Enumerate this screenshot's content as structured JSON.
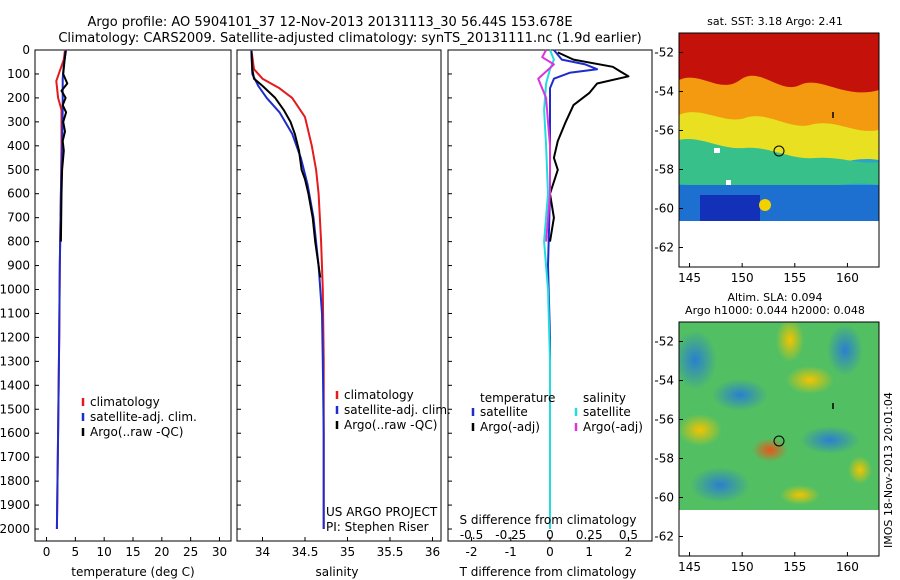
{
  "header": {
    "line1": "Argo profile: AO 5904101_37 12-Nov-2013 20131113_30 56.44S 153.678E",
    "line2": "Climatology: CARS2009. Satellite-adjusted climatology: synTS_20131111.nc (1.9d earlier)"
  },
  "side_label": "IMOS 18-Nov-2013 20:01:04",
  "colors": {
    "climatology": "#e41a1c",
    "satellite": "#1f2ccc",
    "argo": "#000000",
    "sat_salinity": "#22dddd",
    "argo_salinity": "#dd33dd"
  },
  "chart_data": [
    {
      "type": "line",
      "ylabel": "",
      "xlabel": "temperature (deg C)",
      "xlim": [
        -2,
        32
      ],
      "ylim": [
        2050,
        0
      ],
      "xticks": [
        0,
        5,
        10,
        15,
        20,
        25,
        30
      ],
      "yticks": [
        0,
        100,
        200,
        300,
        400,
        500,
        600,
        700,
        800,
        900,
        1000,
        1100,
        1200,
        1300,
        1400,
        1500,
        1600,
        1700,
        1800,
        1900,
        2000
      ],
      "legend": [
        "climatology",
        "satellite-adj. clim.",
        "Argo(..raw -QC)"
      ],
      "series": [
        {
          "name": "climatology",
          "color": "#e41a1c",
          "points": [
            [
              3.2,
              0
            ],
            [
              3.0,
              40
            ],
            [
              2.4,
              80
            ],
            [
              1.7,
              130
            ],
            [
              2.0,
              200
            ],
            [
              2.6,
              250
            ],
            [
              2.6,
              400
            ],
            [
              2.5,
              600
            ],
            [
              2.3,
              900
            ],
            [
              2.2,
              1200
            ],
            [
              2.0,
              1600
            ],
            [
              1.8,
              2000
            ]
          ]
        },
        {
          "name": "satellite-adj. clim.",
          "color": "#1f2ccc",
          "points": [
            [
              3.4,
              0
            ],
            [
              3.0,
              60
            ],
            [
              2.8,
              120
            ],
            [
              2.8,
              200
            ],
            [
              2.8,
              250
            ],
            [
              2.7,
              400
            ],
            [
              2.5,
              600
            ],
            [
              2.3,
              900
            ],
            [
              2.2,
              1200
            ],
            [
              2.0,
              1600
            ],
            [
              1.8,
              2000
            ]
          ]
        },
        {
          "name": "Argo(..raw -QC)",
          "color": "#000000",
          "points": [
            [
              3.3,
              5
            ],
            [
              3.1,
              50
            ],
            [
              2.9,
              100
            ],
            [
              3.6,
              140
            ],
            [
              2.6,
              170
            ],
            [
              3.3,
              200
            ],
            [
              2.8,
              230
            ],
            [
              3.4,
              260
            ],
            [
              2.9,
              300
            ],
            [
              3.2,
              340
            ],
            [
              2.8,
              380
            ],
            [
              3.0,
              420
            ],
            [
              2.7,
              500
            ],
            [
              2.6,
              600
            ],
            [
              2.5,
              800
            ]
          ]
        }
      ]
    },
    {
      "type": "line",
      "xlabel": "salinity",
      "xlim": [
        33.7,
        36.1
      ],
      "ylim": [
        2050,
        0
      ],
      "xticks": [
        34,
        34.5,
        35,
        35.5,
        36
      ],
      "legend": [
        "climatology",
        "satellite-adj. clim.",
        "Argo(..raw -QC)"
      ],
      "annotation": [
        "US ARGO PROJECT",
        "PI: Stephen Riser"
      ],
      "series": [
        {
          "name": "climatology",
          "color": "#e41a1c",
          "points": [
            [
              33.87,
              0
            ],
            [
              33.9,
              80
            ],
            [
              34.0,
              120
            ],
            [
              34.2,
              160
            ],
            [
              34.35,
              200
            ],
            [
              34.5,
              280
            ],
            [
              34.58,
              400
            ],
            [
              34.63,
              500
            ],
            [
              34.66,
              600
            ],
            [
              34.69,
              800
            ],
            [
              34.71,
              1000
            ],
            [
              34.72,
              1300
            ],
            [
              34.72,
              1600
            ],
            [
              34.72,
              2000
            ]
          ]
        },
        {
          "name": "satellite-adj. clim.",
          "color": "#1f2ccc",
          "points": [
            [
              33.87,
              0
            ],
            [
              33.88,
              100
            ],
            [
              33.95,
              150
            ],
            [
              34.05,
              200
            ],
            [
              34.2,
              260
            ],
            [
              34.35,
              350
            ],
            [
              34.45,
              450
            ],
            [
              34.53,
              560
            ],
            [
              34.6,
              700
            ],
            [
              34.66,
              900
            ],
            [
              34.7,
              1100
            ],
            [
              34.71,
              1300
            ],
            [
              34.72,
              1600
            ],
            [
              34.72,
              2000
            ]
          ]
        },
        {
          "name": "Argo(..raw -QC)",
          "color": "#000000",
          "points": [
            [
              33.87,
              5
            ],
            [
              33.88,
              80
            ],
            [
              33.9,
              120
            ],
            [
              34.0,
              150
            ],
            [
              34.15,
              200
            ],
            [
              34.25,
              250
            ],
            [
              34.33,
              300
            ],
            [
              34.38,
              350
            ],
            [
              34.43,
              420
            ],
            [
              34.46,
              500
            ],
            [
              34.5,
              540
            ],
            [
              34.54,
              600
            ],
            [
              34.59,
              700
            ],
            [
              34.62,
              800
            ],
            [
              34.66,
              900
            ],
            [
              34.68,
              950
            ]
          ]
        }
      ]
    },
    {
      "type": "line",
      "xlabel": "T difference from climatology",
      "top_label": "S difference from climatology",
      "xlim": [
        -2.6,
        2.6
      ],
      "ylim": [
        2050,
        0
      ],
      "xticks": [
        -2,
        -1,
        0,
        1,
        2
      ],
      "top_ticks": [
        [
          "-0.5",
          -2
        ],
        [
          "-0.25",
          -1
        ],
        [
          "0",
          0
        ],
        [
          "0.25",
          1
        ],
        [
          "0.5",
          2
        ]
      ],
      "legend_temperature": {
        "heading": "temperature",
        "items": [
          "satellite",
          "Argo(-adj)"
        ]
      },
      "legend_salinity": {
        "heading": "salinity",
        "items": [
          "satellite",
          "Argo(-adj)"
        ]
      },
      "series": [
        {
          "name": "satellite",
          "color": "#1f2ccc",
          "points": [
            [
              0.1,
              0
            ],
            [
              0.3,
              40
            ],
            [
              0.9,
              60
            ],
            [
              1.2,
              80
            ],
            [
              0.5,
              95
            ],
            [
              0.1,
              120
            ],
            [
              0.0,
              160
            ],
            [
              0.0,
              250
            ],
            [
              0.0,
              400
            ],
            [
              0.0,
              600
            ],
            [
              -0.05,
              900
            ],
            [
              0.0,
              1200
            ],
            [
              0.0,
              1600
            ],
            [
              0.0,
              2000
            ]
          ]
        },
        {
          "name": "Argo(-adj)",
          "color": "#000000",
          "points": [
            [
              0.2,
              10
            ],
            [
              0.6,
              40
            ],
            [
              1.6,
              70
            ],
            [
              1.8,
              90
            ],
            [
              2.0,
              110
            ],
            [
              1.2,
              140
            ],
            [
              1.0,
              180
            ],
            [
              0.6,
              230
            ],
            [
              0.4,
              300
            ],
            [
              0.2,
              380
            ],
            [
              0.1,
              450
            ],
            [
              0.2,
              500
            ],
            [
              0.0,
              600
            ],
            [
              0.1,
              700
            ],
            [
              0.0,
              800
            ]
          ]
        },
        {
          "name": "satellite",
          "color": "#22dddd",
          "points": [
            [
              0.0,
              0
            ],
            [
              0.1,
              40
            ],
            [
              0.0,
              80
            ],
            [
              -0.1,
              140
            ],
            [
              -0.15,
              250
            ],
            [
              -0.1,
              400
            ],
            [
              -0.05,
              600
            ],
            [
              -0.15,
              800
            ],
            [
              -0.05,
              1000
            ],
            [
              0.0,
              1300
            ],
            [
              0.0,
              1600
            ],
            [
              0.0,
              2000
            ]
          ]
        },
        {
          "name": "Argo(-adj)",
          "color": "#dd33dd",
          "points": [
            [
              -0.1,
              0
            ],
            [
              -0.2,
              30
            ],
            [
              0.1,
              60
            ],
            [
              -0.3,
              120
            ],
            [
              -0.1,
              200
            ],
            [
              -0.05,
              300
            ],
            [
              0.0,
              400
            ],
            [
              0.0,
              600
            ],
            [
              -0.1,
              800
            ]
          ]
        }
      ]
    }
  ],
  "maps": [
    {
      "title_lines": [
        "sat. SST: 3.18 Argo: 2.41"
      ],
      "xticks": [
        145,
        150,
        155,
        160
      ],
      "yticks": [
        -52,
        -54,
        -56,
        -58,
        -60,
        -62
      ],
      "xlim": [
        144,
        163
      ],
      "ylim": [
        -63,
        -51
      ]
    },
    {
      "title_lines": [
        "Altim. SLA: 0.094",
        "Argo h1000: 0.044 h2000: 0.048"
      ],
      "xticks": [
        145,
        150,
        155,
        160
      ],
      "yticks": [
        -52,
        -54,
        -56,
        -58,
        -60,
        -62
      ],
      "xlim": [
        144,
        163
      ],
      "ylim": [
        -63,
        -51
      ]
    }
  ]
}
